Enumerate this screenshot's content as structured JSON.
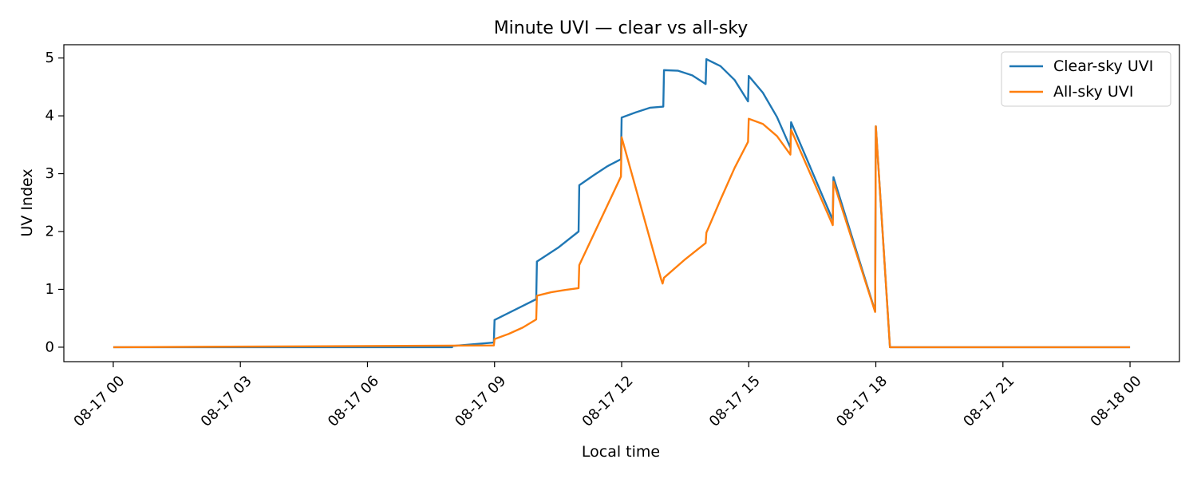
{
  "chart_data": {
    "type": "line",
    "title": "Minute UVI — clear vs all-sky",
    "xlabel": "Local time",
    "ylabel": "UV Index",
    "x_ticks": [
      "08-17 00",
      "08-17 03",
      "08-17 06",
      "08-17 09",
      "08-17 12",
      "08-17 15",
      "08-17 18",
      "08-17 21",
      "08-18 00"
    ],
    "y_ticks": [
      "0",
      "1",
      "2",
      "3",
      "4",
      "5"
    ],
    "xlim": [
      "2023-08-16 22:50",
      "2023-08-18 01:10"
    ],
    "ylim": [
      -0.25,
      5.23
    ],
    "grid": false,
    "legend_position": "top-right",
    "series": [
      {
        "name": "Clear-sky UVI",
        "color": "#1f77b4",
        "points": [
          [
            "08-17 00:00",
            0
          ],
          [
            "08-17 08:00",
            0
          ],
          [
            "08-17 08:00",
            0.02
          ],
          [
            "08-17 08:59",
            0.08
          ],
          [
            "08-17 09:00",
            0.47
          ],
          [
            "08-17 09:59",
            0.83
          ],
          [
            "08-17 10:00",
            1.48
          ],
          [
            "08-17 10:30",
            1.72
          ],
          [
            "08-17 10:59",
            2.0
          ],
          [
            "08-17 11:00",
            2.8
          ],
          [
            "08-17 11:20",
            2.97
          ],
          [
            "08-17 11:40",
            3.13
          ],
          [
            "08-17 11:59",
            3.25
          ],
          [
            "08-17 12:00",
            3.97
          ],
          [
            "08-17 12:20",
            4.06
          ],
          [
            "08-17 12:40",
            4.14
          ],
          [
            "08-17 12:59",
            4.16
          ],
          [
            "08-17 13:00",
            4.79
          ],
          [
            "08-17 13:20",
            4.78
          ],
          [
            "08-17 13:40",
            4.7
          ],
          [
            "08-17 13:59",
            4.55
          ],
          [
            "08-17 14:00",
            4.98
          ],
          [
            "08-17 14:20",
            4.86
          ],
          [
            "08-17 14:40",
            4.62
          ],
          [
            "08-17 14:59",
            4.25
          ],
          [
            "08-17 15:00",
            4.69
          ],
          [
            "08-17 15:20",
            4.4
          ],
          [
            "08-17 15:40",
            3.98
          ],
          [
            "08-17 15:59",
            3.45
          ],
          [
            "08-17 16:00",
            3.89
          ],
          [
            "08-17 16:59",
            2.2
          ],
          [
            "08-17 17:00",
            2.94
          ],
          [
            "08-17 17:59",
            0.62
          ],
          [
            "08-17 18:00",
            3.82
          ],
          [
            "08-17 18:20",
            0
          ],
          [
            "08-18 00:00",
            0
          ]
        ]
      },
      {
        "name": "All-sky UVI",
        "color": "#ff7f0e",
        "points": [
          [
            "08-17 00:00",
            0
          ],
          [
            "08-17 08:59",
            0.03
          ],
          [
            "08-17 09:00",
            0.14
          ],
          [
            "08-17 09:20",
            0.23
          ],
          [
            "08-17 09:40",
            0.34
          ],
          [
            "08-17 09:59",
            0.48
          ],
          [
            "08-17 10:00",
            0.89
          ],
          [
            "08-17 10:20",
            0.95
          ],
          [
            "08-17 10:40",
            0.99
          ],
          [
            "08-17 10:59",
            1.02
          ],
          [
            "08-17 11:00",
            1.42
          ],
          [
            "08-17 11:59",
            2.95
          ],
          [
            "08-17 12:00",
            3.63
          ],
          [
            "08-17 12:56",
            1.17
          ],
          [
            "08-17 12:58",
            1.1
          ],
          [
            "08-17 13:00",
            1.2
          ],
          [
            "08-17 13:30",
            1.52
          ],
          [
            "08-17 13:59",
            1.8
          ],
          [
            "08-17 14:00",
            1.98
          ],
          [
            "08-17 14:20",
            2.55
          ],
          [
            "08-17 14:40",
            3.1
          ],
          [
            "08-17 14:59",
            3.55
          ],
          [
            "08-17 15:00",
            3.95
          ],
          [
            "08-17 15:20",
            3.86
          ],
          [
            "08-17 15:40",
            3.65
          ],
          [
            "08-17 15:59",
            3.33
          ],
          [
            "08-17 16:00",
            3.76
          ],
          [
            "08-17 16:59",
            2.11
          ],
          [
            "08-17 17:00",
            2.86
          ],
          [
            "08-17 17:59",
            0.61
          ],
          [
            "08-17 18:00",
            3.82
          ],
          [
            "08-17 18:20",
            0
          ],
          [
            "08-18 00:00",
            0
          ]
        ]
      }
    ]
  }
}
